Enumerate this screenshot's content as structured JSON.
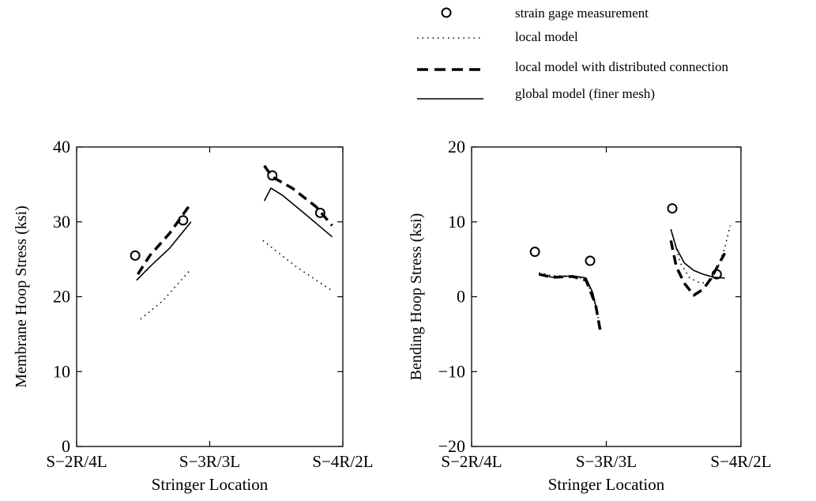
{
  "legend": {
    "entries": [
      {
        "symbol": "circle",
        "label": "strain gage measurement"
      },
      {
        "symbol": "dotted",
        "label": "local model"
      },
      {
        "symbol": "dashed",
        "label": "local model with distributed connection"
      },
      {
        "symbol": "solid",
        "label": "global model (finer mesh)"
      }
    ]
  },
  "chart_data": [
    {
      "type": "line",
      "xlabel": "Stringer Location",
      "ylabel": "Membrane Hoop Stress (ksi)",
      "xlim": [
        0,
        2
      ],
      "ylim": [
        0,
        40
      ],
      "x_ticks": [
        0,
        1,
        2
      ],
      "x_tick_labels": [
        "S−2R/4L",
        "S−3R/3L",
        "S−4R/2L"
      ],
      "y_ticks": [
        0,
        10,
        20,
        30,
        40
      ],
      "y_tick_labels": [
        "0",
        "10",
        "20",
        "30",
        "40"
      ],
      "series": [
        {
          "name": "strain gage measurement",
          "style": "circle",
          "x": [
            0.44,
            0.8,
            1.47,
            1.83
          ],
          "y": [
            25.5,
            30.2,
            36.2,
            31.2
          ]
        },
        {
          "name": "local model",
          "style": "dotted",
          "segments": [
            {
              "x": [
                0.48,
                0.65,
                0.85
              ],
              "y": [
                17.0,
                19.5,
                23.5
              ]
            },
            {
              "x": [
                1.4,
                1.65,
                1.92
              ],
              "y": [
                27.5,
                24.0,
                20.8
              ]
            }
          ]
        },
        {
          "name": "local model with distributed connection",
          "style": "dashed",
          "segments": [
            {
              "x": [
                0.46,
                0.55,
                0.7,
                0.86
              ],
              "y": [
                23.0,
                25.5,
                28.5,
                32.5
              ]
            },
            {
              "x": [
                1.41,
                1.47,
                1.62,
                1.8,
                1.92
              ],
              "y": [
                37.5,
                36.0,
                34.5,
                32.0,
                29.5
              ]
            }
          ]
        },
        {
          "name": "global model (finer mesh)",
          "style": "solid",
          "segments": [
            {
              "x": [
                0.45,
                0.55,
                0.7,
                0.86
              ],
              "y": [
                22.2,
                24.0,
                26.5,
                30.0
              ]
            },
            {
              "x": [
                1.41,
                1.46,
                1.55,
                1.72,
                1.92
              ],
              "y": [
                32.8,
                34.5,
                33.5,
                31.0,
                28.0
              ]
            }
          ]
        }
      ]
    },
    {
      "type": "line",
      "xlabel": "Stringer Location",
      "ylabel": "Bending Hoop Stress (ksi)",
      "xlim": [
        0,
        2
      ],
      "ylim": [
        -20,
        20
      ],
      "x_ticks": [
        0,
        1,
        2
      ],
      "x_tick_labels": [
        "S−2R/4L",
        "S−3R/3L",
        "S−4R/2L"
      ],
      "y_ticks": [
        -20,
        -10,
        0,
        10,
        20
      ],
      "y_tick_labels": [
        "−20",
        "−10",
        "0",
        "10",
        "20"
      ],
      "series": [
        {
          "name": "strain gage measurement",
          "style": "circle",
          "x": [
            0.47,
            0.88,
            1.49,
            1.82
          ],
          "y": [
            6.0,
            4.8,
            11.8,
            3.0
          ]
        },
        {
          "name": "local model",
          "style": "dotted",
          "segments": [
            {
              "x": [
                0.5,
                0.6,
                0.75,
                0.85,
                0.92,
                0.96
              ],
              "y": [
                3.2,
                2.8,
                2.8,
                2.3,
                -1.0,
                -4.5
              ]
            },
            {
              "x": [
                1.48,
                1.55,
                1.62,
                1.7,
                1.77,
                1.82,
                1.88,
                1.92
              ],
              "y": [
                9.0,
                4.5,
                2.5,
                1.8,
                2.0,
                3.5,
                6.5,
                9.5
              ]
            }
          ]
        },
        {
          "name": "local model with distributed connection",
          "style": "dashed",
          "segments": [
            {
              "x": [
                0.5,
                0.6,
                0.75,
                0.85,
                0.92,
                0.96
              ],
              "y": [
                3.0,
                2.6,
                2.7,
                2.2,
                -1.0,
                -5.0
              ]
            },
            {
              "x": [
                1.48,
                1.52,
                1.58,
                1.65,
                1.72,
                1.78,
                1.84,
                1.88
              ],
              "y": [
                7.5,
                4.0,
                1.8,
                0.2,
                1.0,
                2.5,
                4.5,
                5.8
              ]
            }
          ]
        },
        {
          "name": "global model (finer mesh)",
          "style": "solid",
          "segments": [
            {
              "x": [
                0.5,
                0.6,
                0.75,
                0.85,
                0.9,
                0.93
              ],
              "y": [
                3.0,
                2.6,
                2.8,
                2.5,
                0.5,
                -2.0
              ]
            },
            {
              "x": [
                1.48,
                1.52,
                1.58,
                1.65,
                1.72,
                1.8,
                1.88
              ],
              "y": [
                9.0,
                6.5,
                4.5,
                3.5,
                3.0,
                2.6,
                2.5
              ]
            }
          ]
        }
      ]
    }
  ]
}
